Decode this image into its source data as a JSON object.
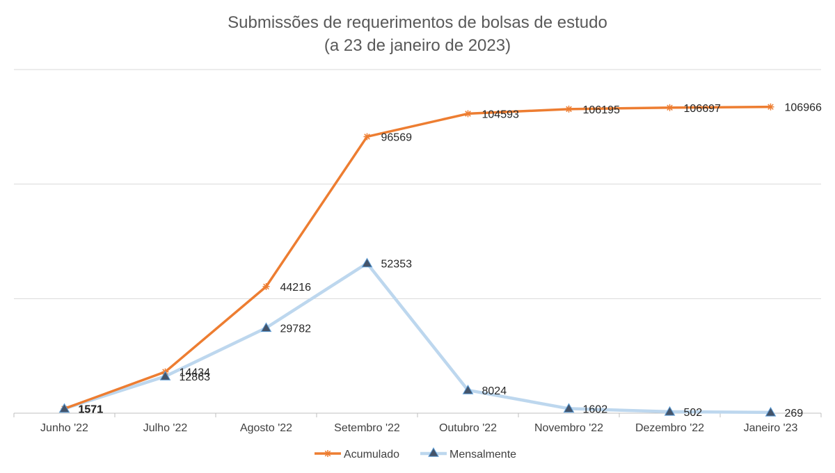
{
  "chart_data": {
    "type": "line",
    "title": "Submissões de requerimentos de bolsas de estudo",
    "subtitle": "(a 23 de janeiro de 2023)",
    "categories": [
      "Junho '22",
      "Julho '22",
      "Agosto '22",
      "Setembro '22",
      "Outubro '22",
      "Novembro '22",
      "Dezembro '22",
      "Janeiro '23"
    ],
    "ylim": [
      0,
      120000
    ],
    "grid": true,
    "legend_position": "bottom",
    "series": [
      {
        "name": "Acumulado",
        "values": [
          1571,
          14434,
          44216,
          96569,
          104593,
          106195,
          106697,
          106966
        ],
        "labels": [
          "1571",
          "14434",
          "44216",
          "96569",
          "104593",
          "106195",
          "106697",
          "106966"
        ],
        "color": "#ED7D31",
        "marker": "asterisk"
      },
      {
        "name": "Mensalmente",
        "values": [
          1571,
          12863,
          29782,
          52353,
          8024,
          1602,
          502,
          269
        ],
        "labels": [
          "1571",
          "12863",
          "29782",
          "52353",
          "8024",
          "1602",
          "502",
          "269"
        ],
        "color": "#BDD7EE",
        "marker": "triangle",
        "marker_fill": "#44546A"
      }
    ]
  }
}
